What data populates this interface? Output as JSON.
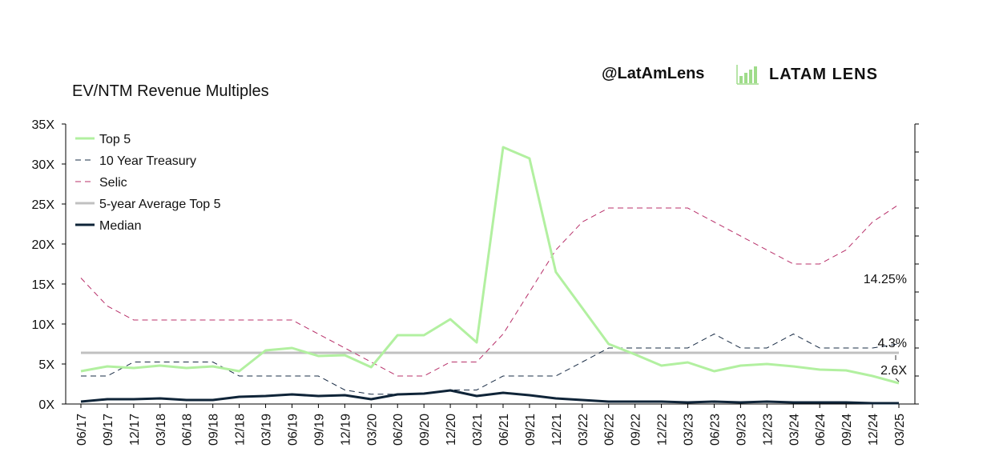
{
  "header": {
    "title": "EV/NTM Revenue Multiples",
    "handle": "@LatAmLens",
    "logo_text": "LATAM LENS",
    "logo_icon": "bar-chart-icon"
  },
  "colors": {
    "top5": "#b2f0a0",
    "treasury": "#1a2d46",
    "selic": "#b8306a",
    "average": "#c0c0c0",
    "median": "#0f2438",
    "logo": "#9fdc8a"
  },
  "chart_data": {
    "type": "line",
    "title": "EV/NTM Revenue Multiples",
    "x": [
      "06/17",
      "09/17",
      "12/17",
      "03/18",
      "06/18",
      "09/18",
      "12/18",
      "03/19",
      "06/19",
      "09/19",
      "12/19",
      "03/20",
      "06/20",
      "09/20",
      "12/20",
      "03/21",
      "06/21",
      "09/21",
      "12/21",
      "03/22",
      "06/22",
      "09/22",
      "12/22",
      "03/23",
      "06/23",
      "09/23",
      "12/23",
      "03/24",
      "06/24",
      "09/24",
      "12/24",
      "03/25"
    ],
    "y_left": {
      "lim": [
        0,
        35
      ],
      "ticks": [
        "0X",
        "5X",
        "10X",
        "15X",
        "20X",
        "25X",
        "30X",
        "35X"
      ]
    },
    "y_right": {
      "lim": [
        0,
        20
      ],
      "labels_shown": false
    },
    "legend_position": "top-left",
    "grid": false,
    "series": [
      {
        "name": "Top 5",
        "axis": "left",
        "style": "solid-thick",
        "color_key": "top5",
        "values": [
          4.1,
          4.7,
          4.5,
          4.8,
          4.5,
          4.7,
          4.1,
          6.7,
          7.0,
          6.0,
          6.1,
          4.6,
          8.6,
          8.6,
          10.6,
          7.7,
          32.1,
          30.7,
          16.5,
          12.0,
          7.5,
          6.2,
          4.8,
          5.2,
          4.1,
          4.8,
          5.0,
          4.7,
          4.3,
          4.2,
          3.5,
          2.6
        ]
      },
      {
        "name": "10 Year Treasury",
        "axis": "right",
        "style": "dashed",
        "color_key": "treasury",
        "values": [
          2.0,
          2.0,
          3.0,
          3.0,
          3.0,
          3.0,
          2.0,
          2.0,
          2.0,
          2.0,
          1.0,
          0.7,
          0.7,
          0.7,
          1.0,
          1.0,
          2.0,
          2.0,
          2.0,
          3.0,
          4.0,
          4.0,
          4.0,
          4.0,
          5.0,
          4.0,
          4.0,
          5.0,
          4.0,
          4.0,
          4.0,
          4.3
        ]
      },
      {
        "name": "Selic",
        "axis": "right",
        "style": "dashed",
        "color_key": "selic",
        "values": [
          9.0,
          7.0,
          6.0,
          6.0,
          6.0,
          6.0,
          6.0,
          6.0,
          6.0,
          5.0,
          4.0,
          3.0,
          2.0,
          2.0,
          3.0,
          3.0,
          5.0,
          8.0,
          11.0,
          13.0,
          14.0,
          14.0,
          14.0,
          14.0,
          13.0,
          12.0,
          11.0,
          10.0,
          10.0,
          11.0,
          13.0,
          14.25
        ]
      },
      {
        "name": "5-year Average Top 5",
        "axis": "left",
        "style": "solid-thick",
        "color_key": "average",
        "values": [
          6.4,
          6.4,
          6.4,
          6.4,
          6.4,
          6.4,
          6.4,
          6.4,
          6.4,
          6.4,
          6.4,
          6.4,
          6.4,
          6.4,
          6.4,
          6.4,
          6.4,
          6.4,
          6.4,
          6.4,
          6.4,
          6.4,
          6.4,
          6.4,
          6.4,
          6.4,
          6.4,
          6.4,
          6.4,
          6.4,
          6.4,
          6.4
        ]
      },
      {
        "name": "Median",
        "axis": "left",
        "style": "solid-thick",
        "color_key": "median",
        "values": [
          0.3,
          0.6,
          0.6,
          0.7,
          0.5,
          0.5,
          0.9,
          1.0,
          1.2,
          1.0,
          1.1,
          0.6,
          1.2,
          1.3,
          1.7,
          1.0,
          1.4,
          1.1,
          0.7,
          0.5,
          0.3,
          0.3,
          0.3,
          0.2,
          0.3,
          0.2,
          0.3,
          0.2,
          0.2,
          0.2,
          0.1,
          0.1
        ]
      }
    ],
    "annotations": [
      {
        "text": "14.25%",
        "series": "Selic"
      },
      {
        "text": "4.3%",
        "series": "10 Year Treasury"
      },
      {
        "text": "2.6X",
        "series": "Top 5"
      }
    ]
  }
}
